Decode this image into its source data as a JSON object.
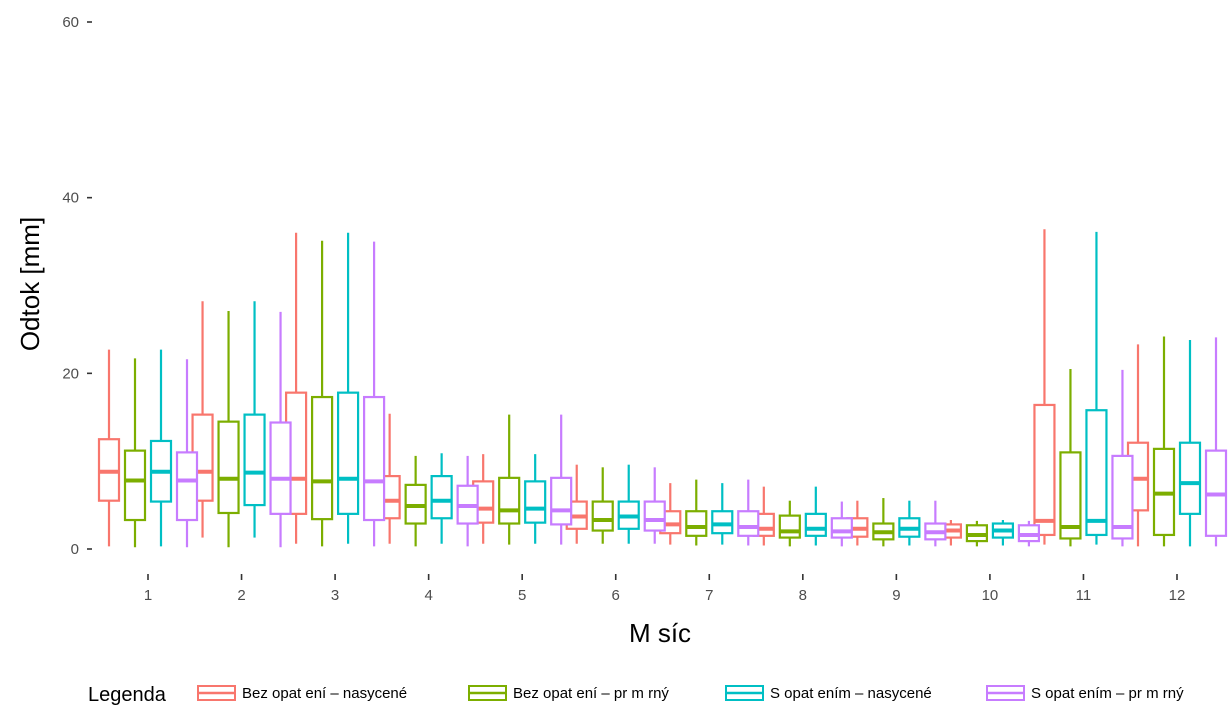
{
  "chart_data": {
    "type": "boxplot",
    "title": "",
    "xlabel": "M síc",
    "ylabel": "Odtok [mm]",
    "ylim": [
      0,
      60
    ],
    "y_ticks": [
      0,
      20,
      40,
      60
    ],
    "categories": [
      "1",
      "2",
      "3",
      "4",
      "5",
      "6",
      "7",
      "8",
      "9",
      "10",
      "11",
      "12"
    ],
    "grid": false,
    "legend": {
      "title": "Legenda",
      "position": "bottom"
    },
    "series": [
      {
        "name": "Bez opat ení – nasycené",
        "color": "#F8766D",
        "boxes": [
          {
            "min": 0.3,
            "q1": 5.5,
            "median": 8.8,
            "q3": 12.5,
            "max": 22.7
          },
          {
            "min": 1.3,
            "q1": 5.5,
            "median": 8.8,
            "q3": 15.3,
            "max": 28.2
          },
          {
            "min": 0.6,
            "q1": 4.0,
            "median": 8.0,
            "q3": 17.8,
            "max": 36.0
          },
          {
            "min": 0.6,
            "q1": 3.5,
            "median": 5.5,
            "q3": 8.3,
            "max": 15.4
          },
          {
            "min": 0.6,
            "q1": 3.0,
            "median": 4.6,
            "q3": 7.7,
            "max": 10.8
          },
          {
            "min": 0.6,
            "q1": 2.3,
            "median": 3.7,
            "q3": 5.4,
            "max": 9.6
          },
          {
            "min": 0.5,
            "q1": 1.8,
            "median": 2.8,
            "q3": 4.3,
            "max": 7.5
          },
          {
            "min": 0.4,
            "q1": 1.5,
            "median": 2.3,
            "q3": 4.0,
            "max": 7.1
          },
          {
            "min": 0.4,
            "q1": 1.4,
            "median": 2.3,
            "q3": 3.5,
            "max": 5.5
          },
          {
            "min": 0.4,
            "q1": 1.3,
            "median": 2.1,
            "q3": 2.8,
            "max": 3.3
          },
          {
            "min": 0.5,
            "q1": 1.6,
            "median": 3.2,
            "q3": 16.4,
            "max": 36.4
          },
          {
            "min": 0.3,
            "q1": 4.4,
            "median": 8.0,
            "q3": 12.1,
            "max": 23.3
          }
        ]
      },
      {
        "name": "Bez opat ení – pr m rný",
        "color": "#7CAE00",
        "boxes": [
          {
            "min": 0.2,
            "q1": 3.3,
            "median": 7.8,
            "q3": 11.2,
            "max": 21.7
          },
          {
            "min": 0.2,
            "q1": 4.1,
            "median": 8.0,
            "q3": 14.5,
            "max": 27.1
          },
          {
            "min": 0.3,
            "q1": 3.4,
            "median": 7.7,
            "q3": 17.3,
            "max": 35.1
          },
          {
            "min": 0.3,
            "q1": 2.9,
            "median": 4.9,
            "q3": 7.3,
            "max": 10.6
          },
          {
            "min": 0.5,
            "q1": 2.9,
            "median": 4.4,
            "q3": 8.1,
            "max": 15.3
          },
          {
            "min": 0.6,
            "q1": 2.1,
            "median": 3.3,
            "q3": 5.4,
            "max": 9.3
          },
          {
            "min": 0.4,
            "q1": 1.5,
            "median": 2.5,
            "q3": 4.3,
            "max": 7.9
          },
          {
            "min": 0.3,
            "q1": 1.3,
            "median": 2.0,
            "q3": 3.8,
            "max": 5.5
          },
          {
            "min": 0.3,
            "q1": 1.1,
            "median": 1.9,
            "q3": 2.9,
            "max": 5.8
          },
          {
            "min": 0.3,
            "q1": 0.9,
            "median": 1.6,
            "q3": 2.7,
            "max": 3.2
          },
          {
            "min": 0.3,
            "q1": 1.2,
            "median": 2.5,
            "q3": 11.0,
            "max": 20.5
          },
          {
            "min": 0.3,
            "q1": 1.6,
            "median": 6.3,
            "q3": 11.4,
            "max": 24.2
          }
        ]
      },
      {
        "name": "S opat ením – nasycené",
        "color": "#00BFC4",
        "boxes": [
          {
            "min": 0.3,
            "q1": 5.4,
            "median": 8.8,
            "q3": 12.3,
            "max": 22.7
          },
          {
            "min": 1.3,
            "q1": 5.0,
            "median": 8.7,
            "q3": 15.3,
            "max": 28.2
          },
          {
            "min": 0.6,
            "q1": 4.0,
            "median": 8.0,
            "q3": 17.8,
            "max": 36.0
          },
          {
            "min": 0.6,
            "q1": 3.5,
            "median": 5.5,
            "q3": 8.3,
            "max": 10.9
          },
          {
            "min": 0.6,
            "q1": 3.0,
            "median": 4.6,
            "q3": 7.7,
            "max": 10.8
          },
          {
            "min": 0.6,
            "q1": 2.3,
            "median": 3.7,
            "q3": 5.4,
            "max": 9.6
          },
          {
            "min": 0.5,
            "q1": 1.8,
            "median": 2.8,
            "q3": 4.3,
            "max": 7.5
          },
          {
            "min": 0.4,
            "q1": 1.5,
            "median": 2.3,
            "q3": 4.0,
            "max": 7.1
          },
          {
            "min": 0.4,
            "q1": 1.4,
            "median": 2.3,
            "q3": 3.5,
            "max": 5.5
          },
          {
            "min": 0.4,
            "q1": 1.3,
            "median": 2.1,
            "q3": 2.9,
            "max": 3.3
          },
          {
            "min": 0.5,
            "q1": 1.6,
            "median": 3.2,
            "q3": 15.8,
            "max": 36.1
          },
          {
            "min": 0.3,
            "q1": 4.0,
            "median": 7.5,
            "q3": 12.1,
            "max": 23.8
          }
        ]
      },
      {
        "name": "S opat ením – pr m rný",
        "color": "#C77CFF",
        "boxes": [
          {
            "min": 0.2,
            "q1": 3.3,
            "median": 7.8,
            "q3": 11.0,
            "max": 21.6
          },
          {
            "min": 0.2,
            "q1": 4.0,
            "median": 8.0,
            "q3": 14.4,
            "max": 27.0
          },
          {
            "min": 0.3,
            "q1": 3.3,
            "median": 7.7,
            "q3": 17.3,
            "max": 35.0
          },
          {
            "min": 0.3,
            "q1": 2.9,
            "median": 4.9,
            "q3": 7.2,
            "max": 10.6
          },
          {
            "min": 0.5,
            "q1": 2.8,
            "median": 4.4,
            "q3": 8.1,
            "max": 15.3
          },
          {
            "min": 0.6,
            "q1": 2.1,
            "median": 3.3,
            "q3": 5.4,
            "max": 9.3
          },
          {
            "min": 0.4,
            "q1": 1.5,
            "median": 2.5,
            "q3": 4.3,
            "max": 7.9
          },
          {
            "min": 0.3,
            "q1": 1.3,
            "median": 2.0,
            "q3": 3.5,
            "max": 5.4
          },
          {
            "min": 0.3,
            "q1": 1.1,
            "median": 1.9,
            "q3": 2.9,
            "max": 5.5
          },
          {
            "min": 0.3,
            "q1": 0.9,
            "median": 1.6,
            "q3": 2.7,
            "max": 3.2
          },
          {
            "min": 0.3,
            "q1": 1.2,
            "median": 2.5,
            "q3": 10.6,
            "max": 20.4
          },
          {
            "min": 0.3,
            "q1": 1.5,
            "median": 6.2,
            "q3": 11.2,
            "max": 24.1
          }
        ]
      }
    ]
  }
}
